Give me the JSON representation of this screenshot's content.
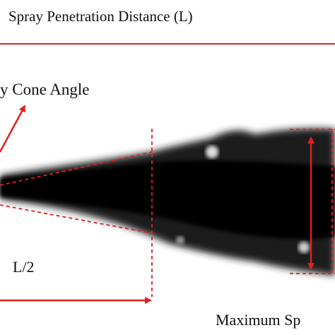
{
  "header": {
    "title": "Spray Penetration Distance (L)"
  },
  "labels": {
    "cone_angle": "y Cone Angle",
    "half_length": "L/2",
    "max_spread": "Maximum Sp"
  }
}
